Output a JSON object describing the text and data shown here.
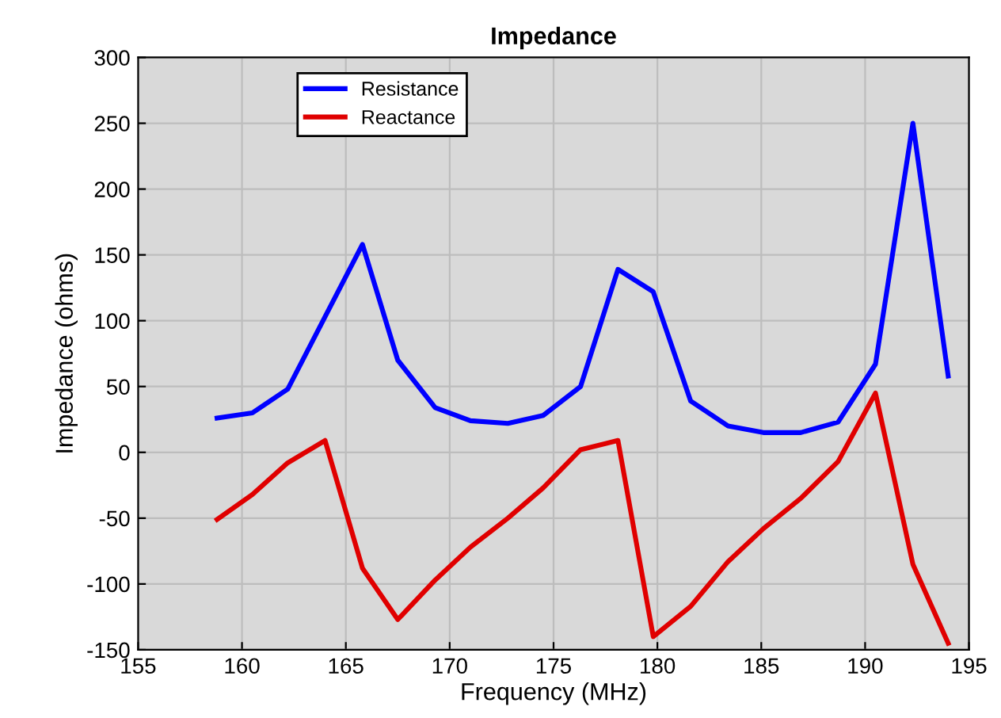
{
  "chart_data": {
    "type": "line",
    "title": "Impedance",
    "xlabel": "Frequency (MHz)",
    "ylabel": "Impedance (ohms)",
    "x": [
      158.8,
      160.5,
      162.2,
      164.0,
      165.8,
      167.5,
      169.3,
      171.0,
      172.8,
      174.5,
      176.3,
      178.1,
      179.8,
      181.6,
      183.4,
      185.1,
      186.9,
      188.7,
      190.5,
      192.3,
      194.0
    ],
    "series": [
      {
        "name": "Resistance",
        "color": "#0000ff",
        "values": [
          26,
          30,
          48,
          103,
          158,
          70,
          34,
          24,
          22,
          28,
          50,
          139,
          122,
          39,
          20,
          15,
          15,
          23,
          67,
          250,
          58
        ]
      },
      {
        "name": "Reactance",
        "color": "#e00000",
        "values": [
          -51,
          -32,
          -8,
          9,
          -88,
          -127,
          -97,
          -72,
          -50,
          -27,
          2,
          9,
          -140,
          -117,
          -83,
          -58,
          -35,
          -7,
          45,
          -85,
          -145
        ]
      }
    ],
    "xlim": [
      155,
      195
    ],
    "xticks": [
      155,
      160,
      165,
      170,
      175,
      180,
      185,
      190,
      195
    ],
    "ylim": [
      -150,
      300
    ],
    "yticks": [
      -150,
      -100,
      -50,
      0,
      50,
      100,
      150,
      200,
      250,
      300
    ],
    "grid": true,
    "legend": "top left",
    "marker": "none",
    "line_style": "solid"
  }
}
